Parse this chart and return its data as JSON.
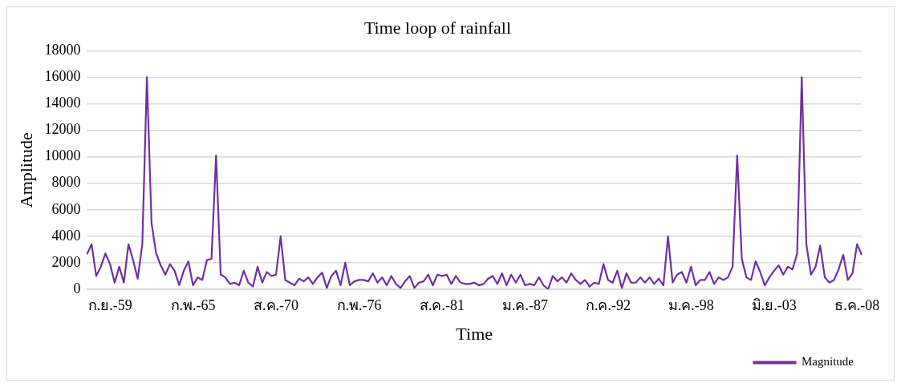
{
  "chart_data": {
    "type": "line",
    "title": "Time loop of rainfall",
    "xlabel": "Time",
    "ylabel": "Amplitude",
    "categories": [
      null,
      null,
      null,
      null,
      null,
      "ก.ย.-59",
      null,
      null,
      null,
      null,
      null,
      null,
      null,
      null,
      null,
      null,
      null,
      null,
      null,
      null,
      null,
      null,
      null,
      "ก.พ.-65",
      null,
      null,
      null,
      null,
      null,
      null,
      null,
      null,
      null,
      null,
      null,
      null,
      null,
      null,
      null,
      null,
      null,
      "ส.ค.-70",
      null,
      null,
      null,
      null,
      null,
      null,
      null,
      null,
      null,
      null,
      null,
      null,
      null,
      null,
      null,
      null,
      null,
      "ก.พ.-76",
      null,
      null,
      null,
      null,
      null,
      null,
      null,
      null,
      null,
      null,
      null,
      null,
      null,
      null,
      null,
      null,
      null,
      "ส.ค.-81",
      null,
      null,
      null,
      null,
      null,
      null,
      null,
      null,
      null,
      null,
      null,
      null,
      null,
      null,
      null,
      null,
      null,
      "ม.ค.-87",
      null,
      null,
      null,
      null,
      null,
      null,
      null,
      null,
      null,
      null,
      null,
      null,
      null,
      null,
      null,
      null,
      null,
      "ก.ค.-92",
      null,
      null,
      null,
      null,
      null,
      null,
      null,
      null,
      null,
      null,
      null,
      null,
      null,
      null,
      null,
      null,
      null,
      "ม.ค.-98",
      null,
      null,
      null,
      null,
      null,
      null,
      null,
      null,
      null,
      null,
      null,
      null,
      null,
      null,
      null,
      null,
      null,
      "มิ.ย.-03",
      null,
      null,
      null,
      null,
      null,
      null,
      null,
      null,
      null,
      null,
      null,
      null,
      null,
      null,
      null,
      null,
      null,
      "ธ.ค.-08",
      null
    ],
    "series": [
      {
        "name": "Magnitude",
        "color": "#7030a0",
        "values": [
          2640,
          3400,
          1000,
          1700,
          2700,
          1900,
          500,
          1700,
          500,
          3400,
          2200,
          800,
          3400,
          16000,
          5000,
          2700,
          1800,
          1100,
          1900,
          1400,
          300,
          1400,
          2100,
          300,
          900,
          700,
          2200,
          2300,
          10100,
          1100,
          900,
          400,
          500,
          300,
          1400,
          500,
          200,
          1700,
          500,
          1300,
          1000,
          1100,
          4000,
          700,
          500,
          300,
          800,
          600,
          900,
          400,
          900,
          1250,
          100,
          1000,
          1400,
          300,
          2000,
          300,
          600,
          700,
          700,
          600,
          1200,
          500,
          900,
          300,
          1000,
          400,
          100,
          600,
          1000,
          100,
          500,
          600,
          1100,
          300,
          1100,
          1000,
          1100,
          400,
          1000,
          500,
          400,
          400,
          500,
          300,
          400,
          800,
          1000,
          400,
          1200,
          300,
          1100,
          500,
          1100,
          300,
          400,
          300,
          900,
          300,
          0,
          1000,
          600,
          900,
          500,
          1200,
          700,
          400,
          700,
          200,
          500,
          400,
          1900,
          700,
          500,
          1400,
          100,
          1200,
          500,
          500,
          900,
          500,
          900,
          400,
          800,
          300,
          4000,
          500,
          1100,
          1300,
          500,
          1700,
          300,
          700,
          700,
          1300,
          400,
          900,
          700,
          900,
          1700,
          10100,
          2300,
          900,
          700,
          2100,
          1300,
          300,
          900,
          1400,
          1800,
          1100,
          1700,
          1500,
          2700,
          16000,
          3400,
          1100,
          1700,
          3300,
          900,
          500,
          700,
          1500,
          2600,
          700,
          1200,
          3400,
          2600
        ]
      }
    ],
    "ylim": [
      0,
      18000
    ],
    "yticks": [
      0,
      2000,
      4000,
      6000,
      8000,
      10000,
      12000,
      14000,
      16000,
      18000
    ],
    "grid": "y",
    "legend": "bottom right",
    "marker": "none",
    "line_style": "solid"
  }
}
